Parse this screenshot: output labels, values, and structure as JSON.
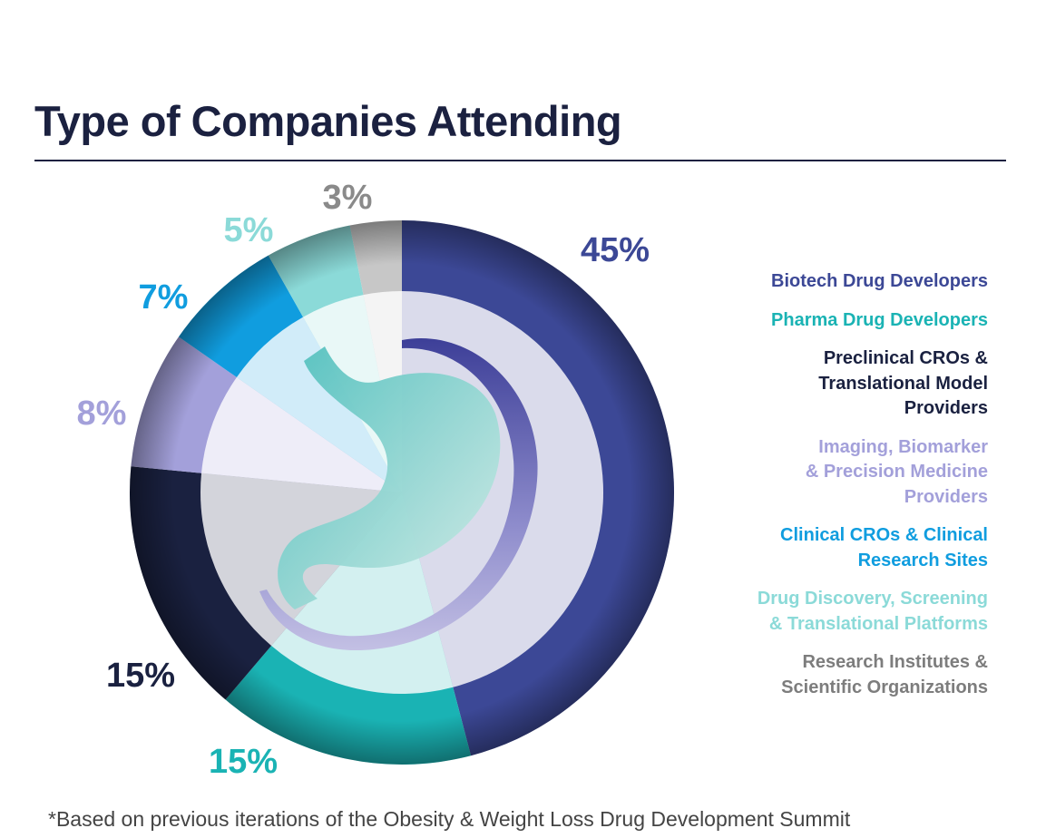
{
  "header": {
    "title": "Type of Companies Attending"
  },
  "chart_data": {
    "type": "pie",
    "title": "Type of Companies Attending",
    "slices": [
      {
        "label": "Biotech Drug Developers",
        "lines": [
          "Biotech Drug Developers"
        ],
        "value": 45,
        "display": "45%",
        "color": "#3c4896"
      },
      {
        "label": "Pharma Drug Developers",
        "lines": [
          "Pharma Drug Developers"
        ],
        "value": 15,
        "display": "15%",
        "color": "#1ab3b4"
      },
      {
        "label": "Preclinical CROs & Translational Model Providers",
        "lines": [
          "Preclinical CROs &",
          "Translational Model",
          "Providers"
        ],
        "value": 15,
        "display": "15%",
        "color": "#1a2140"
      },
      {
        "label": "Imaging, Biomarker & Precision Medicine Providers",
        "lines": [
          "Imaging, Biomarker",
          "& Precision Medicine",
          "Providers"
        ],
        "value": 8,
        "display": "8%",
        "color": "#a3a0da"
      },
      {
        "label": "Clinical CROs & Clinical Research Sites",
        "lines": [
          "Clinical CROs & Clinical",
          "Research Sites"
        ],
        "value": 7,
        "display": "7%",
        "color": "#109ddf"
      },
      {
        "label": "Drug Discovery, Screening & Translational Platforms",
        "lines": [
          "Drug Discovery, Screening",
          "& Translational Platforms"
        ],
        "value": 5,
        "display": "5%",
        "color": "#8bdad8"
      },
      {
        "label": "Research Institutes & Scientific Organizations",
        "lines": [
          "Research Institutes &",
          "Scientific Organizations"
        ],
        "value": 3,
        "display": "3%",
        "color": "#c7c7c7"
      }
    ],
    "legend_placement": "right"
  },
  "legend_colors": [
    "#3c4896",
    "#1ab3b4",
    "#1a2140",
    "#a3a0da",
    "#109ddf",
    "#8bdad8",
    "#7d7d7d"
  ],
  "label_colors": [
    "#3c4896",
    "#1ab3b4",
    "#1a2140",
    "#a3a0da",
    "#109ddf",
    "#8bdad8",
    "#8a8a8a"
  ],
  "footnote": "*Based on previous iterations of the Obesity & Weight Loss Drug Development Summit"
}
